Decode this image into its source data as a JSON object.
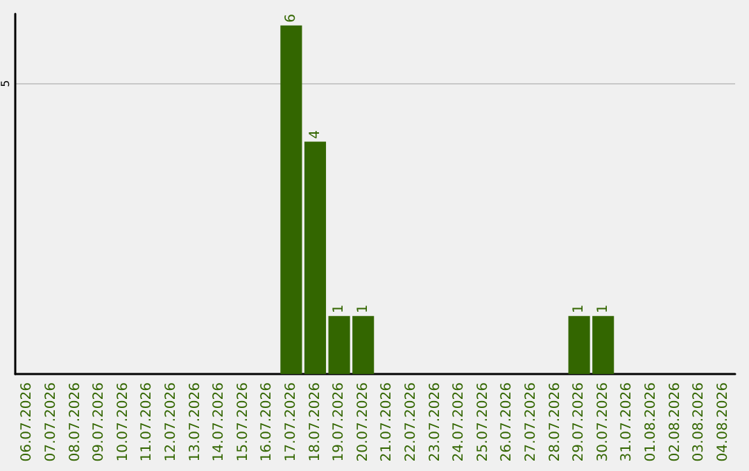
{
  "chart_data": {
    "type": "bar",
    "categories": [
      "06.07.2026",
      "07.07.2026",
      "08.07.2026",
      "09.07.2026",
      "10.07.2026",
      "11.07.2026",
      "12.07.2026",
      "13.07.2026",
      "14.07.2026",
      "15.07.2026",
      "16.07.2026",
      "17.07.2026",
      "18.07.2026",
      "19.07.2026",
      "20.07.2026",
      "21.07.2026",
      "22.07.2026",
      "23.07.2026",
      "24.07.2026",
      "25.07.2026",
      "26.07.2026",
      "27.07.2026",
      "28.07.2026",
      "29.07.2026",
      "30.07.2026",
      "31.07.2026",
      "01.08.2026",
      "02.08.2026",
      "03.08.2026",
      "04.08.2026"
    ],
    "values": [
      0,
      0,
      0,
      0,
      0,
      0,
      0,
      0,
      0,
      0,
      0,
      6,
      4,
      1,
      1,
      0,
      0,
      0,
      0,
      0,
      0,
      0,
      0,
      1,
      1,
      0,
      0,
      0,
      0,
      0
    ],
    "value_labels": [
      null,
      null,
      null,
      null,
      null,
      null,
      null,
      null,
      null,
      null,
      null,
      "6",
      "4",
      "1",
      "1",
      null,
      null,
      null,
      null,
      null,
      null,
      null,
      null,
      "1",
      "1",
      null,
      null,
      null,
      null,
      null
    ],
    "color": "#336600",
    "ylim": [
      0,
      6.2
    ],
    "yticks": [
      5
    ],
    "grid": "y"
  }
}
